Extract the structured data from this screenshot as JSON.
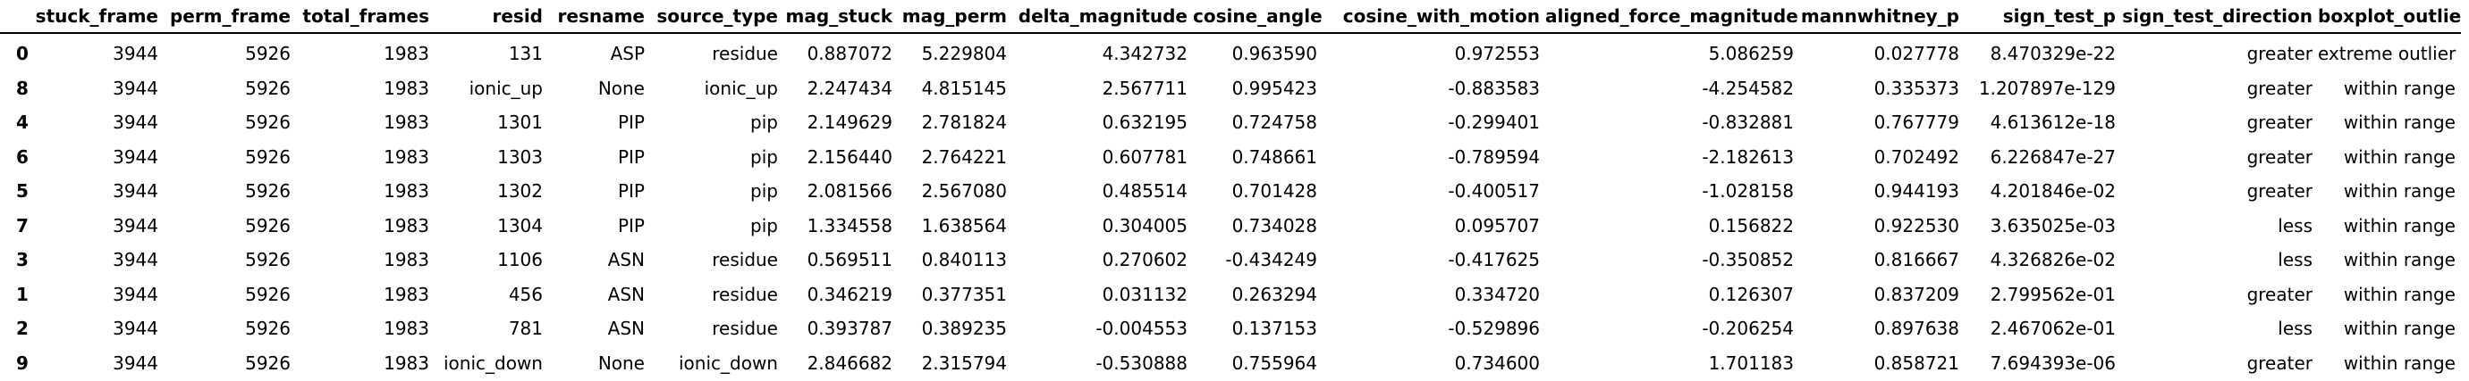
{
  "table": {
    "index_header": "",
    "columns": [
      "stuck_frame",
      "perm_frame",
      "total_frames",
      "resid",
      "resname",
      "source_type",
      "mag_stuck",
      "mag_perm",
      "delta_magnitude",
      "cosine_angle",
      "cosine_with_motion",
      "aligned_force_magnitude",
      "mannwhitney_p",
      "sign_test_p",
      "sign_test_direction",
      "boxplot_outlier"
    ],
    "rows": [
      {
        "index": "0",
        "cells": [
          "3944",
          "5926",
          "1983",
          "131",
          "ASP",
          "residue",
          "0.887072",
          "5.229804",
          "4.342732",
          "0.963590",
          "0.972553",
          "5.086259",
          "0.027778",
          "8.470329e-22",
          "greater",
          "extreme outlier"
        ]
      },
      {
        "index": "8",
        "cells": [
          "3944",
          "5926",
          "1983",
          "ionic_up",
          "None",
          "ionic_up",
          "2.247434",
          "4.815145",
          "2.567711",
          "0.995423",
          "-0.883583",
          "-4.254582",
          "0.335373",
          "1.207897e-129",
          "greater",
          "within range"
        ]
      },
      {
        "index": "4",
        "cells": [
          "3944",
          "5926",
          "1983",
          "1301",
          "PIP",
          "pip",
          "2.149629",
          "2.781824",
          "0.632195",
          "0.724758",
          "-0.299401",
          "-0.832881",
          "0.767779",
          "4.613612e-18",
          "greater",
          "within range"
        ]
      },
      {
        "index": "6",
        "cells": [
          "3944",
          "5926",
          "1983",
          "1303",
          "PIP",
          "pip",
          "2.156440",
          "2.764221",
          "0.607781",
          "0.748661",
          "-0.789594",
          "-2.182613",
          "0.702492",
          "6.226847e-27",
          "greater",
          "within range"
        ]
      },
      {
        "index": "5",
        "cells": [
          "3944",
          "5926",
          "1983",
          "1302",
          "PIP",
          "pip",
          "2.081566",
          "2.567080",
          "0.485514",
          "0.701428",
          "-0.400517",
          "-1.028158",
          "0.944193",
          "4.201846e-02",
          "greater",
          "within range"
        ]
      },
      {
        "index": "7",
        "cells": [
          "3944",
          "5926",
          "1983",
          "1304",
          "PIP",
          "pip",
          "1.334558",
          "1.638564",
          "0.304005",
          "0.734028",
          "0.095707",
          "0.156822",
          "0.922530",
          "3.635025e-03",
          "less",
          "within range"
        ]
      },
      {
        "index": "3",
        "cells": [
          "3944",
          "5926",
          "1983",
          "1106",
          "ASN",
          "residue",
          "0.569511",
          "0.840113",
          "0.270602",
          "-0.434249",
          "-0.417625",
          "-0.350852",
          "0.816667",
          "4.326826e-02",
          "less",
          "within range"
        ]
      },
      {
        "index": "1",
        "cells": [
          "3944",
          "5926",
          "1983",
          "456",
          "ASN",
          "residue",
          "0.346219",
          "0.377351",
          "0.031132",
          "0.263294",
          "0.334720",
          "0.126307",
          "0.837209",
          "2.799562e-01",
          "greater",
          "within range"
        ]
      },
      {
        "index": "2",
        "cells": [
          "3944",
          "5926",
          "1983",
          "781",
          "ASN",
          "residue",
          "0.393787",
          "0.389235",
          "-0.004553",
          "0.137153",
          "-0.529896",
          "-0.206254",
          "0.897638",
          "2.467062e-01",
          "less",
          "within range"
        ]
      },
      {
        "index": "9",
        "cells": [
          "3944",
          "5926",
          "1983",
          "ionic_down",
          "None",
          "ionic_down",
          "2.846682",
          "2.315794",
          "-0.530888",
          "0.755964",
          "0.734600",
          "1.701183",
          "0.858721",
          "7.694393e-06",
          "greater",
          "within range"
        ]
      }
    ]
  }
}
